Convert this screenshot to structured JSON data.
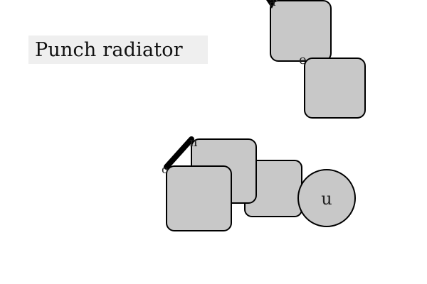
{
  "title": "Punch radiator",
  "colors": {
    "block_fill": "#c8c8c8",
    "stroke": "#000000",
    "title_bg": "#efefef"
  },
  "labels": {
    "top_block_corner": "a",
    "middle_block_corner": "e",
    "cluster_handle_top": "n",
    "cluster_handle_bottom": "o",
    "circle": "u"
  }
}
